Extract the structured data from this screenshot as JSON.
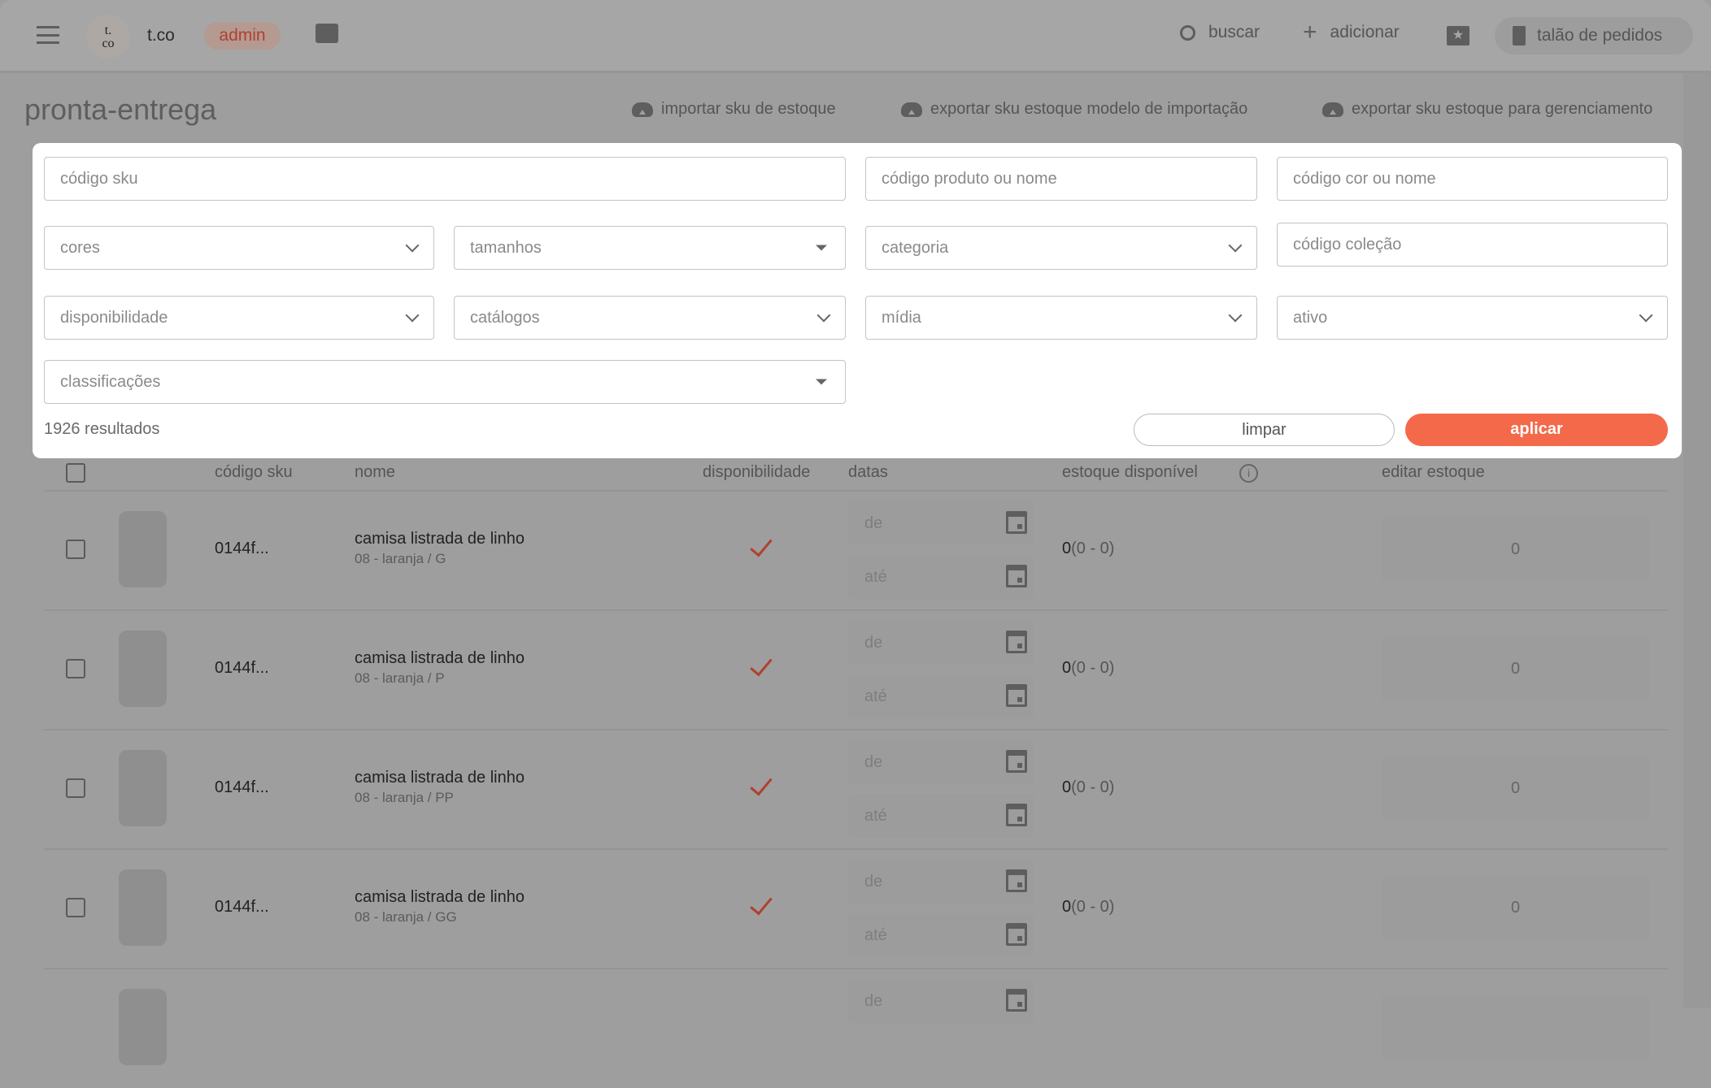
{
  "topbar": {
    "brand": "t.co",
    "logo_text": "t.\nco",
    "role_badge": "admin",
    "search_label": "buscar",
    "add_label": "adicionar",
    "order_pad_label": "talão de pedidos"
  },
  "page": {
    "title": "pronta-entrega",
    "actions": [
      "importar sku de estoque",
      "exportar sku estoque modelo de importação",
      "exportar sku estoque para gerenciamento"
    ]
  },
  "filters": {
    "sku_placeholder": "código sku",
    "product_placeholder": "código produto ou nome",
    "color_placeholder": "código cor ou nome",
    "colors": "cores",
    "sizes": "tamanhos",
    "category": "categoria",
    "collection_placeholder": "código coleção",
    "availability": "disponibilidade",
    "catalogs": "catálogos",
    "media": "mídia",
    "active": "ativo",
    "classifications": "classificações",
    "results": "1926 resultados",
    "clear": "limpar",
    "apply": "aplicar"
  },
  "table": {
    "headers": {
      "sku": "código sku",
      "name": "nome",
      "availability": "disponibilidade",
      "dates": "datas",
      "stock": "estoque disponível",
      "edit": "editar estoque"
    },
    "rows": [
      {
        "sku": "0144f...",
        "name": "camisa listrada de linho",
        "variant": "08 - laranja / G",
        "available": true,
        "from": "de",
        "to": "até",
        "stock": "0",
        "stock_range": "(0 - 0)",
        "edit_value": "0"
      },
      {
        "sku": "0144f...",
        "name": "camisa listrada de linho",
        "variant": "08 - laranja / P",
        "available": true,
        "from": "de",
        "to": "até",
        "stock": "0",
        "stock_range": "(0 - 0)",
        "edit_value": "0"
      },
      {
        "sku": "0144f...",
        "name": "camisa listrada de linho",
        "variant": "08 - laranja / PP",
        "available": true,
        "from": "de",
        "to": "até",
        "stock": "0",
        "stock_range": "(0 - 0)",
        "edit_value": "0"
      },
      {
        "sku": "0144f...",
        "name": "camisa listrada de linho",
        "variant": "08 - laranja / GG",
        "available": true,
        "from": "de",
        "to": "até",
        "stock": "0",
        "stock_range": "(0 - 0)",
        "edit_value": "0"
      },
      {
        "sku": "",
        "name": "",
        "variant": "",
        "available": false,
        "from": "de",
        "to": "",
        "stock": "",
        "stock_range": "",
        "edit_value": ""
      }
    ]
  },
  "colors": {
    "accent": "#f4694a",
    "badge_text": "#b0412e"
  }
}
